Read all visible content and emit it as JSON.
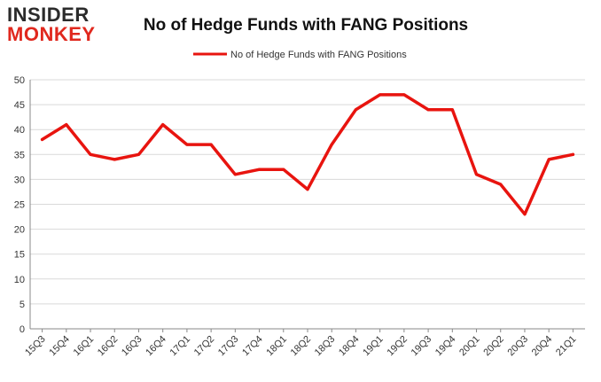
{
  "logo": {
    "line1": "INSIDER",
    "line2": "MONKEY"
  },
  "colors": {
    "line": "#e8140f",
    "grid": "#d9d9d9",
    "axis": "#888888",
    "text": "#333333",
    "logo_dark": "#2b2b2b",
    "logo_red": "#e0281e"
  },
  "chart_data": {
    "type": "line",
    "title": "No of Hedge Funds with FANG Positions",
    "xlabel": "",
    "ylabel": "",
    "ylim": [
      0,
      50
    ],
    "yticks": [
      0,
      5,
      10,
      15,
      20,
      25,
      30,
      35,
      40,
      45,
      50
    ],
    "grid": true,
    "legend_position": "top-center",
    "categories": [
      "15Q3",
      "15Q4",
      "16Q1",
      "16Q2",
      "16Q3",
      "16Q4",
      "17Q1",
      "17Q2",
      "17Q3",
      "17Q4",
      "18Q1",
      "18Q2",
      "18Q3",
      "18Q4",
      "19Q1",
      "19Q2",
      "19Q3",
      "19Q4",
      "20Q1",
      "20Q2",
      "20Q3",
      "20Q4",
      "21Q1"
    ],
    "series": [
      {
        "name": "No of Hedge Funds with FANG Positions",
        "values": [
          38,
          41,
          35,
          34,
          35,
          41,
          37,
          37,
          31,
          32,
          32,
          28,
          37,
          44,
          47,
          47,
          44,
          44,
          31,
          29,
          23,
          34,
          35
        ]
      }
    ]
  }
}
